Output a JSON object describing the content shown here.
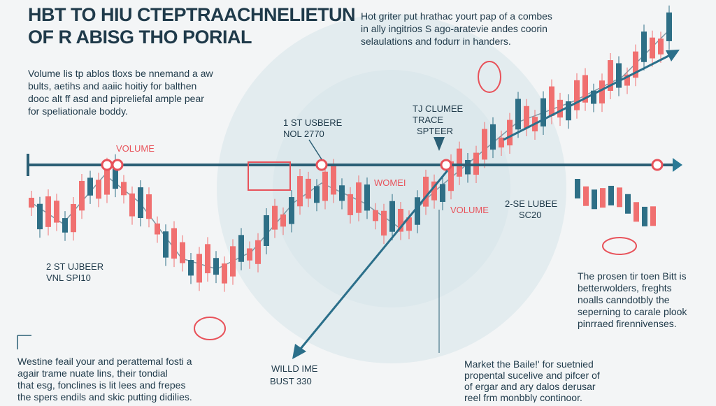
{
  "header": {
    "title": [
      "HBT TO HIU CTEPTRAACHNELIETUN",
      "OF R ABISG THO PORIAL"
    ]
  },
  "top_note": {
    "lines": [
      "Hot griter put hrathac yourt pap of a combes",
      "in ally ingitrios S ago-aratevie andes coorin",
      "selaulations and fodurr in handers."
    ]
  },
  "intro": {
    "lines": [
      "Volume lis tp ablos tloxs be nnemand a aw",
      "bults, aetihs and aaiic hoitiy for balthen",
      "dooc alt ff asd and pipreliefal ample pear",
      "for speliationale boddy."
    ]
  },
  "labels": {
    "volume_left": "VOLUME",
    "first_user": [
      "1 ST USBERE",
      "NOL 2770"
    ],
    "trace": [
      "TJ CLUMEE",
      "TRACE",
      "SPTEER"
    ],
    "womei": "WOMEI",
    "volume_mid": "VOLUME",
    "second_right": [
      "2-SE LUBEE",
      "SC20"
    ],
    "second_left": [
      "2 ST UJBEER",
      "VNL SPI10"
    ],
    "wild": [
      "WILLD IME",
      "BUST 330"
    ]
  },
  "right_note": {
    "lines": [
      "The prosen tir toen Bitt is",
      "betterwolders, freghts",
      "noalls canndotbly the",
      "seperning to carale plook",
      "pinrraed firennivenses."
    ]
  },
  "bottom_left": {
    "lines": [
      "Westine feail your and perattemal fosti a",
      "agair trame nuate lins, their tondial",
      "that esg, fonclines is lit lees and frepes",
      "the spers endils and skic putting didilies."
    ]
  },
  "bottom_right": {
    "lines": [
      "Market the Baile!' for suetnied",
      "propental sucelive and pifcer of",
      "of ergar and ary dalos derusar",
      "reel frm monbbly continoor."
    ]
  }
}
